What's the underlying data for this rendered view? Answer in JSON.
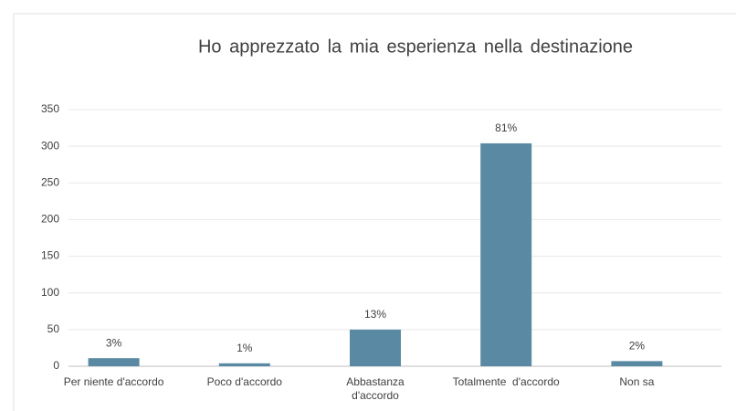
{
  "chart_data": {
    "type": "bar",
    "title": "Ho apprezzato la mia esperienza nella destinazione",
    "categories": [
      "Per niente d'accordo",
      "Poco d'accordo",
      "Abbastanza d'accordo",
      "Totalmente  d'accordo",
      "Non sa"
    ],
    "values": [
      11,
      4,
      50,
      304,
      7
    ],
    "annotations": [
      "3%",
      "1%",
      "13%",
      "81%",
      "2%"
    ],
    "color": "#5a8aa3",
    "ylim": [
      0,
      350
    ],
    "yticks": [
      0,
      50,
      100,
      150,
      200,
      250,
      300,
      350
    ],
    "grid": true
  }
}
